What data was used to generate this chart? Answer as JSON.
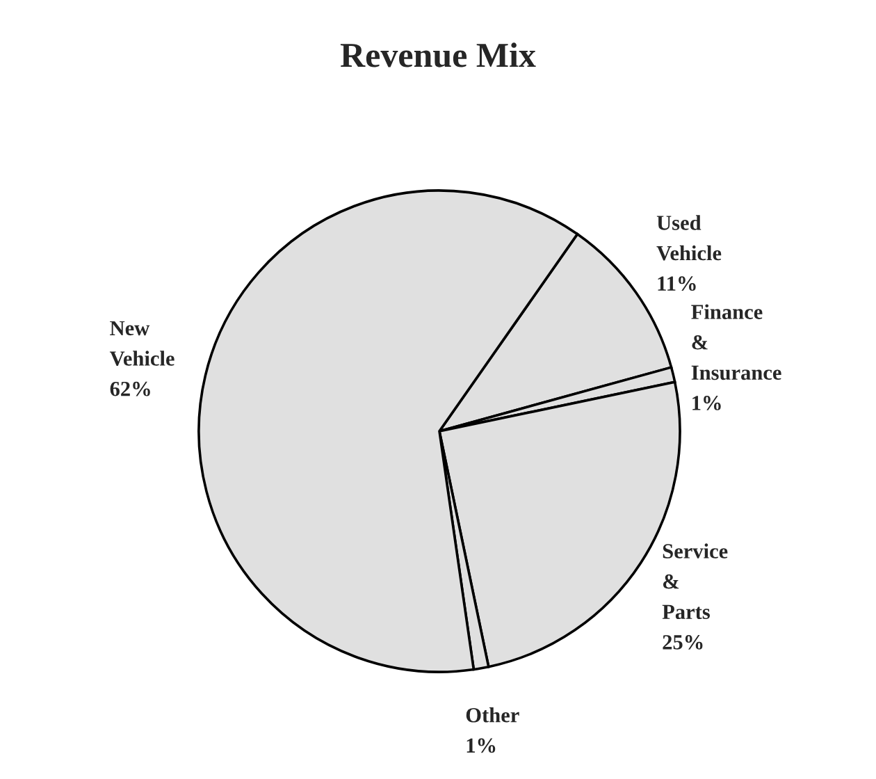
{
  "chart_data": {
    "type": "pie",
    "title": "Revenue Mix",
    "categories": [
      "Used Vehicle",
      "Finance & Insurance",
      "Service & Parts",
      "Other",
      "New Vehicle"
    ],
    "values": [
      11,
      1,
      25,
      1,
      62
    ],
    "value_labels": [
      "11%",
      "1%",
      "25%",
      "1%",
      "62%"
    ],
    "colors": [
      "#e0e0e0",
      "#e0e0e0",
      "#e0e0e0",
      "#e0e0e0",
      "#e0e0e0"
    ]
  }
}
